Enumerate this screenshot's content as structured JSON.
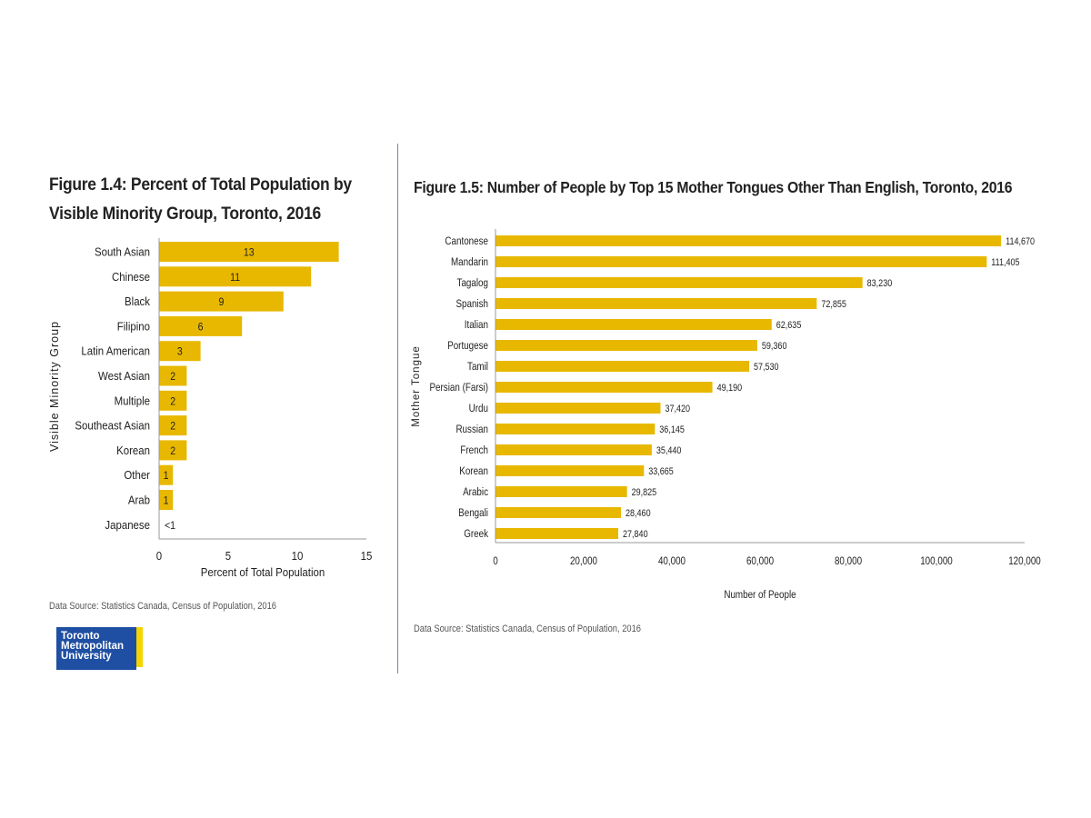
{
  "chart_data": [
    {
      "type": "bar",
      "orientation": "horizontal",
      "title": "Figure 1.4: Percent of Total Population by Visible Minority Group, Toronto, 2016",
      "xlabel": "Percent of Total Population",
      "ylabel": "Visible Minority Group",
      "categories": [
        "South Asian",
        "Chinese",
        "Black",
        "Filipino",
        "Latin American",
        "West Asian",
        "Multiple",
        "Southeast Asian",
        "Korean",
        "Other",
        "Arab",
        "Japanese"
      ],
      "values": [
        13,
        11,
        9,
        6,
        3,
        2,
        2,
        2,
        2,
        1,
        1,
        null
      ],
      "data_labels": [
        "13",
        "11",
        "9",
        "6",
        "3",
        "2",
        "2",
        "2",
        "2",
        "1",
        "1",
        "<1"
      ],
      "xlim": [
        0,
        15
      ],
      "xticks": [
        "0",
        "5",
        "10",
        "15"
      ],
      "grid": false,
      "bar_color": "#e8b800",
      "source": "Data Source: Statistics Canada, Census of Population, 2016"
    },
    {
      "type": "bar",
      "orientation": "horizontal",
      "title": "Figure 1.5: Number of People by Top 15 Mother Tongues Other Than English, Toronto, 2016",
      "xlabel": "Number of People",
      "ylabel": "Mother Tongue",
      "categories": [
        "Cantonese",
        "Mandarin",
        "Tagalog",
        "Spanish",
        "Italian",
        "Portugese",
        "Tamil",
        "Persian (Farsi)",
        "Urdu",
        "Russian",
        "French",
        "Korean",
        "Arabic",
        "Bengali",
        "Greek"
      ],
      "values": [
        114670,
        111405,
        83230,
        72855,
        62635,
        59360,
        57530,
        49190,
        37420,
        36145,
        35440,
        33665,
        29825,
        28460,
        27840
      ],
      "data_labels": [
        "114,670",
        "111,405",
        "83,230",
        "72,855",
        "62,635",
        "59,360",
        "57,530",
        "49,190",
        "37,420",
        "36,145",
        "35,440",
        "33,665",
        "29,825",
        "28,460",
        "27,840"
      ],
      "xlim": [
        0,
        120000
      ],
      "xticks": [
        "0",
        "20,000",
        "40,000",
        "60,000",
        "80,000",
        "100,000",
        "120,000"
      ],
      "grid": false,
      "bar_color": "#e8b800",
      "source": "Data Source: Statistics Canada, Census of Population, 2016"
    }
  ],
  "logo": {
    "lines": [
      "Toronto",
      "Metropolitan",
      "University"
    ],
    "colors": {
      "blue": "#1f4fa3",
      "yellow": "#f5d400"
    }
  }
}
